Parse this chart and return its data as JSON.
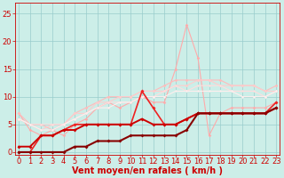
{
  "bg_color": "#cceee8",
  "grid_color": "#99cccc",
  "xlabel": "Vent moyen/en rafales ( km/h )",
  "xlabel_color": "#cc0000",
  "xlabel_fontsize": 7,
  "tick_color": "#cc0000",
  "tick_fontsize": 6,
  "yticks": [
    0,
    5,
    10,
    15,
    20,
    25
  ],
  "xticks": [
    0,
    1,
    2,
    3,
    4,
    5,
    6,
    7,
    8,
    9,
    10,
    11,
    12,
    13,
    14,
    15,
    16,
    17,
    18,
    19,
    20,
    21,
    22,
    23
  ],
  "xlim": [
    -0.3,
    23.3
  ],
  "ylim": [
    -0.5,
    27
  ],
  "series": [
    {
      "x": [
        0,
        1,
        2,
        3,
        4,
        5,
        6,
        7,
        8,
        9,
        10,
        11,
        12,
        13,
        14,
        15,
        16,
        17,
        18,
        19,
        20,
        21,
        22,
        23
      ],
      "y": [
        7,
        4,
        3,
        4,
        3,
        5,
        6,
        8,
        9,
        8,
        9,
        10,
        9,
        9,
        15,
        23,
        17,
        3,
        7,
        8,
        8,
        8,
        8,
        9
      ],
      "color": "#ffaaaa",
      "lw": 0.8,
      "marker": "D",
      "ms": 1.8,
      "zorder": 2
    },
    {
      "x": [
        0,
        1,
        2,
        3,
        4,
        5,
        6,
        7,
        8,
        9,
        10,
        11,
        12,
        13,
        14,
        15,
        16,
        17,
        18,
        19,
        20,
        21,
        22,
        23
      ],
      "y": [
        7,
        5,
        5,
        4,
        5,
        7,
        8,
        9,
        10,
        10,
        10,
        11,
        11,
        12,
        13,
        13,
        13,
        13,
        13,
        12,
        12,
        12,
        11,
        12
      ],
      "color": "#ffbbbb",
      "lw": 0.8,
      "marker": "D",
      "ms": 1.8,
      "zorder": 2
    },
    {
      "x": [
        0,
        1,
        2,
        3,
        4,
        5,
        6,
        7,
        8,
        9,
        10,
        11,
        12,
        13,
        14,
        15,
        16,
        17,
        18,
        19,
        20,
        21,
        22,
        23
      ],
      "y": [
        6,
        5,
        4,
        5,
        5,
        7,
        7,
        9,
        9,
        10,
        10,
        11,
        11,
        11,
        12,
        12,
        13,
        13,
        12,
        12,
        12,
        12,
        11,
        11
      ],
      "color": "#ffcccc",
      "lw": 0.8,
      "marker": "D",
      "ms": 1.8,
      "zorder": 2
    },
    {
      "x": [
        0,
        1,
        2,
        3,
        4,
        5,
        6,
        7,
        8,
        9,
        10,
        11,
        12,
        13,
        14,
        15,
        16,
        17,
        18,
        19,
        20,
        21,
        22,
        23
      ],
      "y": [
        6,
        5,
        5,
        5,
        5,
        6,
        7,
        8,
        9,
        9,
        9,
        10,
        10,
        11,
        12,
        11,
        12,
        12,
        12,
        11,
        11,
        11,
        10,
        11
      ],
      "color": "#ffdddd",
      "lw": 0.8,
      "marker": "D",
      "ms": 1.5,
      "zorder": 2
    },
    {
      "x": [
        0,
        1,
        2,
        3,
        4,
        5,
        6,
        7,
        8,
        9,
        10,
        11,
        12,
        13,
        14,
        15,
        16,
        17,
        18,
        19,
        20,
        21,
        22,
        23
      ],
      "y": [
        6,
        5,
        4,
        4,
        5,
        6,
        7,
        8,
        8,
        9,
        9,
        10,
        10,
        10,
        11,
        11,
        11,
        11,
        11,
        11,
        10,
        10,
        10,
        11
      ],
      "color": "#ffeeee",
      "lw": 0.8,
      "marker": "D",
      "ms": 1.5,
      "zorder": 2
    },
    {
      "x": [
        0,
        1,
        2,
        3,
        4,
        5,
        6,
        7,
        8,
        9,
        10,
        11,
        12,
        13,
        14,
        15,
        16,
        17,
        18,
        19,
        20,
        21,
        22,
        23
      ],
      "y": [
        0,
        0,
        3,
        3,
        4,
        5,
        5,
        5,
        5,
        5,
        5,
        11,
        8,
        5,
        5,
        6,
        7,
        7,
        7,
        7,
        7,
        7,
        7,
        9
      ],
      "color": "#ee2222",
      "lw": 1.2,
      "marker": "D",
      "ms": 2.0,
      "zorder": 3
    },
    {
      "x": [
        0,
        1,
        2,
        3,
        4,
        5,
        6,
        7,
        8,
        9,
        10,
        11,
        12,
        13,
        14,
        15,
        16,
        17,
        18,
        19,
        20,
        21,
        22,
        23
      ],
      "y": [
        1,
        1,
        3,
        3,
        4,
        4,
        5,
        5,
        5,
        5,
        5,
        6,
        5,
        5,
        5,
        6,
        7,
        7,
        7,
        7,
        7,
        7,
        7,
        8
      ],
      "color": "#cc0000",
      "lw": 1.4,
      "marker": "D",
      "ms": 2.0,
      "zorder": 3
    },
    {
      "x": [
        0,
        1,
        2,
        3,
        4,
        5,
        6,
        7,
        8,
        9,
        10,
        11,
        12,
        13,
        14,
        15,
        16,
        17,
        18,
        19,
        20,
        21,
        22,
        23
      ],
      "y": [
        0,
        0,
        0,
        0,
        0,
        1,
        1,
        2,
        2,
        2,
        3,
        3,
        3,
        3,
        3,
        4,
        7,
        7,
        7,
        7,
        7,
        7,
        7,
        8
      ],
      "color": "#880000",
      "lw": 1.5,
      "marker": "D",
      "ms": 2.0,
      "zorder": 4
    }
  ]
}
